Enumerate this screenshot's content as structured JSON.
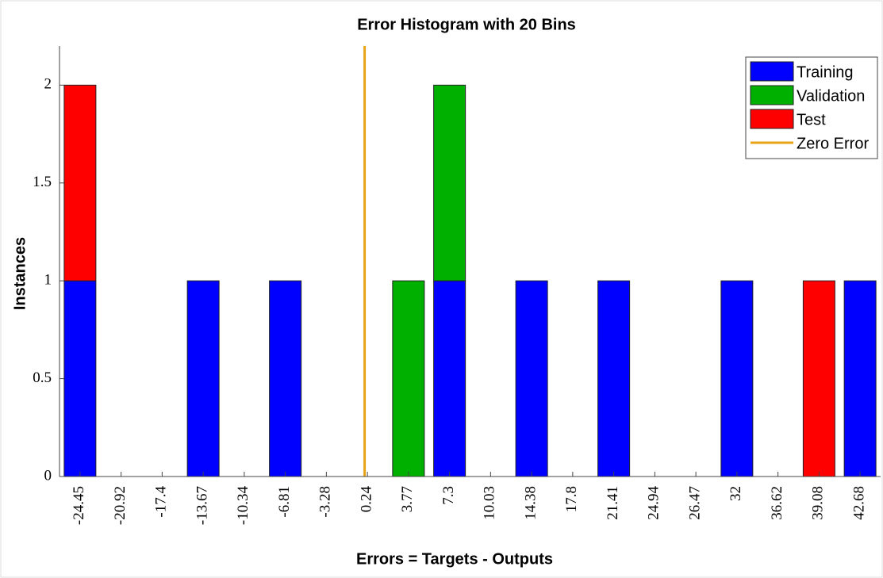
{
  "chart_data": {
    "type": "bar",
    "stacked": true,
    "title": "Error Histogram with 20 Bins",
    "x_label": "Errors = Targets - Outputs",
    "y_label": "Instances",
    "categories": [
      -24.45,
      -20.92,
      -17.4,
      -13.67,
      -10.34,
      -6.81,
      -3.28,
      0.24,
      3.77,
      7.3,
      10.03,
      14.38,
      17.8,
      21.41,
      24.94,
      26.47,
      32,
      36.62,
      39.08,
      42.68
    ],
    "series": [
      {
        "name": "Training",
        "color": "#0000ff",
        "values": [
          1,
          0,
          0,
          1,
          0,
          1,
          0,
          0,
          0,
          1,
          0,
          1,
          0,
          1,
          0,
          0,
          1,
          0,
          0,
          1
        ]
      },
      {
        "name": "Validation",
        "color": "#00b000",
        "values": [
          0,
          0,
          0,
          0,
          0,
          0,
          0,
          0,
          1,
          1,
          0,
          0,
          0,
          0,
          0,
          0,
          0,
          0,
          0,
          0
        ]
      },
      {
        "name": "Test",
        "color": "#ff0000",
        "values": [
          1,
          0,
          0,
          0,
          0,
          0,
          0,
          0,
          0,
          0,
          0,
          0,
          0,
          0,
          0,
          0,
          0,
          0,
          1,
          0
        ]
      }
    ],
    "reference_line": {
      "name": "Zero Error",
      "value": 0,
      "color": "#e8a317"
    },
    "ylim": [
      0,
      2.2
    ],
    "yticks": [
      0,
      0.5,
      1,
      1.5,
      2
    ],
    "legend": "upper right"
  }
}
